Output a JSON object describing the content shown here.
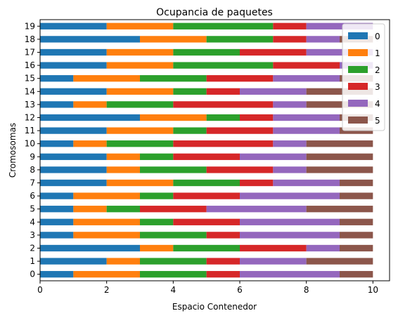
{
  "chart_data": {
    "type": "bar",
    "orientation": "horizontal",
    "stacked": true,
    "title": "Ocupancia de paquetes",
    "xlabel": "Espacio Contenedor",
    "ylabel": "Cromosomas",
    "xlim": [
      0,
      10.5
    ],
    "xticks": [
      "0",
      "2",
      "4",
      "6",
      "8",
      "10"
    ],
    "categories": [
      "0",
      "1",
      "2",
      "3",
      "4",
      "5",
      "6",
      "7",
      "8",
      "9",
      "10",
      "11",
      "12",
      "13",
      "14",
      "15",
      "16",
      "17",
      "18",
      "19"
    ],
    "grid": false,
    "legend_position": "top-right",
    "series": [
      {
        "name": "0",
        "color": "#1f77b4",
        "values": [
          1,
          2,
          3,
          1,
          1,
          1,
          1,
          2,
          2,
          2,
          1,
          2,
          3,
          1,
          2,
          1,
          2,
          2,
          3,
          2
        ]
      },
      {
        "name": "1",
        "color": "#ff7f0e",
        "values": [
          2,
          1,
          1,
          2,
          2,
          1,
          2,
          2,
          1,
          1,
          1,
          2,
          2,
          1,
          2,
          2,
          2,
          2,
          2,
          2
        ]
      },
      {
        "name": "2",
        "color": "#2ca02c",
        "values": [
          2,
          2,
          2,
          2,
          1,
          1,
          1,
          2,
          2,
          1,
          2,
          1,
          1,
          2,
          1,
          2,
          3,
          2,
          2,
          3
        ]
      },
      {
        "name": "3",
        "color": "#d62728",
        "values": [
          1,
          1,
          2,
          1,
          2,
          2,
          2,
          1,
          2,
          2,
          3,
          2,
          1,
          3,
          1,
          2,
          2,
          2,
          1,
          1
        ]
      },
      {
        "name": "4",
        "color": "#9467bd",
        "values": [
          3,
          2,
          1,
          3,
          3,
          3,
          3,
          2,
          1,
          2,
          1,
          2,
          2,
          1,
          2,
          2,
          1,
          2,
          1,
          2
        ]
      },
      {
        "name": "5",
        "color": "#8c564b",
        "values": [
          1,
          2,
          1,
          1,
          1,
          2,
          1,
          1,
          2,
          2,
          2,
          1,
          1,
          2,
          2,
          1,
          0,
          0,
          1,
          0
        ]
      }
    ]
  }
}
